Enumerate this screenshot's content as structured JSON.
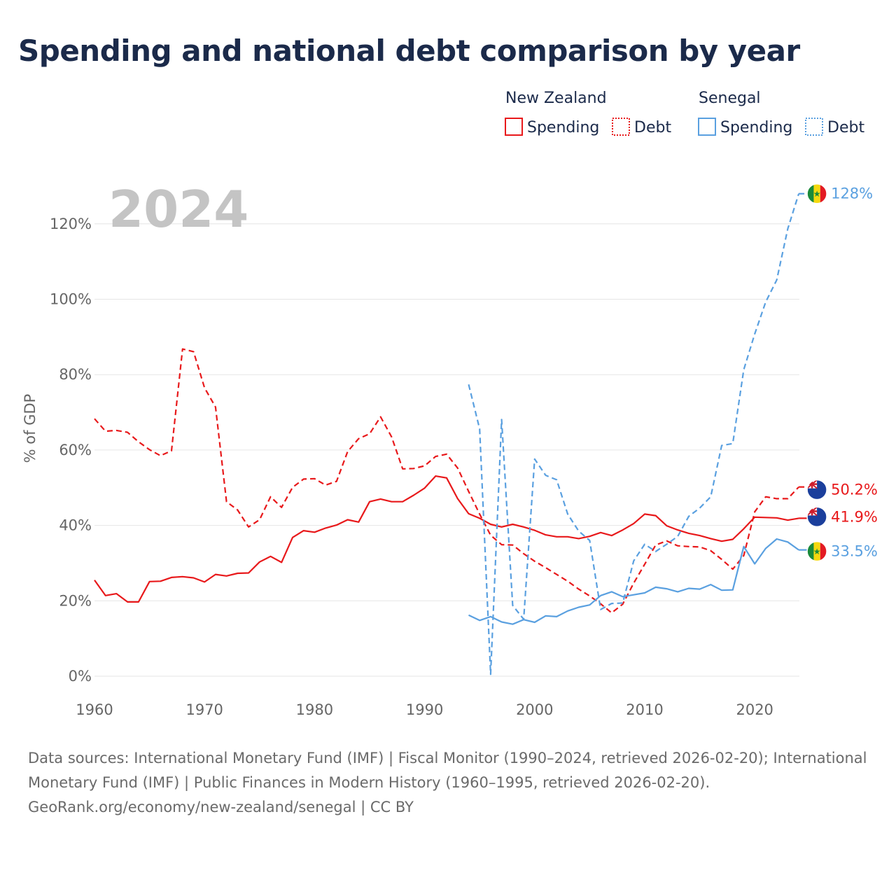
{
  "title": "Spending and national debt comparison by year",
  "year_label": "2024",
  "legend": {
    "groups": [
      {
        "country": "New Zealand",
        "color": "#e8191b",
        "items": [
          {
            "label": "Spending",
            "style": "solid"
          },
          {
            "label": "Debt",
            "style": "dashed"
          }
        ]
      },
      {
        "country": "Senegal",
        "color": "#5aa0e0",
        "items": [
          {
            "label": "Spending",
            "style": "solid"
          },
          {
            "label": "Debt",
            "style": "dashed"
          }
        ]
      }
    ]
  },
  "footer": {
    "sources": "Data sources: International Monetary Fund (IMF) | Fiscal Monitor (1990–2024, retrieved 2026-02-20); International Monetary Fund (IMF) | Public Finances in Modern History (1960–1995, retrieved 2026-02-20).",
    "credit": "GeoRank.org/economy/new-zealand/senegal | CC BY"
  },
  "chart_data": {
    "type": "line",
    "title": "Spending and national debt comparison by year",
    "xlabel": "",
    "ylabel": "% of GDP",
    "xlim": [
      1960,
      2024
    ],
    "ylim": [
      0,
      130
    ],
    "x_ticks": [
      1960,
      1970,
      1980,
      1990,
      2000,
      2010,
      2020
    ],
    "y_ticks": [
      0,
      20,
      40,
      60,
      80,
      100,
      120
    ],
    "y_tick_labels": [
      "0%",
      "20%",
      "40%",
      "60%",
      "80%",
      "100%",
      "120%"
    ],
    "grid": true,
    "series": [
      {
        "name": "New Zealand Spending",
        "country": "New Zealand",
        "measure": "Spending",
        "color": "#e8191b",
        "dash": "solid",
        "end_label": "41.9%",
        "points": [
          [
            1960,
            25.5
          ],
          [
            1961,
            21.4
          ],
          [
            1962,
            21.9
          ],
          [
            1963,
            19.7
          ],
          [
            1964,
            19.7
          ],
          [
            1965,
            25.1
          ],
          [
            1966,
            25.2
          ],
          [
            1967,
            26.2
          ],
          [
            1968,
            26.4
          ],
          [
            1969,
            26.1
          ],
          [
            1970,
            25.0
          ],
          [
            1971,
            27.0
          ],
          [
            1972,
            26.6
          ],
          [
            1973,
            27.3
          ],
          [
            1974,
            27.4
          ],
          [
            1975,
            30.3
          ],
          [
            1976,
            31.8
          ],
          [
            1977,
            30.2
          ],
          [
            1978,
            36.8
          ],
          [
            1979,
            38.6
          ],
          [
            1980,
            38.2
          ],
          [
            1981,
            39.3
          ],
          [
            1982,
            40.1
          ],
          [
            1983,
            41.5
          ],
          [
            1984,
            40.9
          ],
          [
            1985,
            46.3
          ],
          [
            1986,
            47.0
          ],
          [
            1987,
            46.3
          ],
          [
            1988,
            46.3
          ],
          [
            1989,
            48.0
          ],
          [
            1990,
            49.9
          ],
          [
            1991,
            53.1
          ],
          [
            1992,
            52.6
          ],
          [
            1993,
            47.1
          ],
          [
            1994,
            43.1
          ],
          [
            1995,
            41.9
          ],
          [
            1996,
            40.3
          ],
          [
            1997,
            39.6
          ],
          [
            1998,
            40.3
          ],
          [
            1999,
            39.6
          ],
          [
            2000,
            38.7
          ],
          [
            2001,
            37.5
          ],
          [
            2002,
            37.0
          ],
          [
            2003,
            37.0
          ],
          [
            2004,
            36.5
          ],
          [
            2005,
            37.1
          ],
          [
            2006,
            38.1
          ],
          [
            2007,
            37.3
          ],
          [
            2008,
            38.8
          ],
          [
            2009,
            40.5
          ],
          [
            2010,
            43.0
          ],
          [
            2011,
            42.6
          ],
          [
            2012,
            39.9
          ],
          [
            2013,
            38.8
          ],
          [
            2014,
            37.9
          ],
          [
            2015,
            37.3
          ],
          [
            2016,
            36.5
          ],
          [
            2017,
            35.8
          ],
          [
            2018,
            36.3
          ],
          [
            2019,
            39.1
          ],
          [
            2020,
            42.2
          ],
          [
            2021,
            42.1
          ],
          [
            2022,
            42.0
          ],
          [
            2023,
            41.4
          ],
          [
            2024,
            41.9
          ]
        ]
      },
      {
        "name": "New Zealand Debt",
        "country": "New Zealand",
        "measure": "Debt",
        "color": "#e8191b",
        "dash": "dashed",
        "end_label": "50.2%",
        "points": [
          [
            1960,
            68.3
          ],
          [
            1961,
            65.0
          ],
          [
            1962,
            65.2
          ],
          [
            1963,
            64.7
          ],
          [
            1964,
            62.2
          ],
          [
            1965,
            60.1
          ],
          [
            1966,
            58.5
          ],
          [
            1967,
            59.8
          ],
          [
            1968,
            86.8
          ],
          [
            1969,
            86.1
          ],
          [
            1970,
            76.5
          ],
          [
            1971,
            71.4
          ],
          [
            1972,
            46.3
          ],
          [
            1973,
            44.1
          ],
          [
            1974,
            39.6
          ],
          [
            1975,
            41.5
          ],
          [
            1976,
            47.6
          ],
          [
            1977,
            44.8
          ],
          [
            1978,
            50.1
          ],
          [
            1979,
            52.3
          ],
          [
            1980,
            52.4
          ],
          [
            1981,
            50.7
          ],
          [
            1982,
            51.7
          ],
          [
            1983,
            59.6
          ],
          [
            1984,
            63.0
          ],
          [
            1985,
            64.3
          ],
          [
            1986,
            68.8
          ],
          [
            1987,
            63.5
          ],
          [
            1988,
            55.0
          ],
          [
            1989,
            55.1
          ],
          [
            1990,
            55.8
          ],
          [
            1991,
            58.3
          ],
          [
            1992,
            58.9
          ],
          [
            1993,
            55.2
          ],
          [
            1994,
            49.0
          ],
          [
            1995,
            43.0
          ],
          [
            1996,
            37.4
          ],
          [
            1997,
            34.9
          ],
          [
            1998,
            34.8
          ],
          [
            1999,
            32.5
          ],
          [
            2000,
            30.5
          ],
          [
            2001,
            28.8
          ],
          [
            2002,
            27.0
          ],
          [
            2003,
            25.2
          ],
          [
            2004,
            23.1
          ],
          [
            2005,
            21.3
          ],
          [
            2006,
            19.2
          ],
          [
            2007,
            16.8
          ],
          [
            2008,
            19.1
          ],
          [
            2009,
            24.7
          ],
          [
            2010,
            29.7
          ],
          [
            2011,
            34.8
          ],
          [
            2012,
            35.9
          ],
          [
            2013,
            34.6
          ],
          [
            2014,
            34.4
          ],
          [
            2015,
            34.3
          ],
          [
            2016,
            33.3
          ],
          [
            2017,
            31.0
          ],
          [
            2018,
            28.4
          ],
          [
            2019,
            32.0
          ],
          [
            2020,
            43.6
          ],
          [
            2021,
            47.6
          ],
          [
            2022,
            47.1
          ],
          [
            2023,
            47.1
          ],
          [
            2024,
            50.2
          ]
        ]
      },
      {
        "name": "Senegal Spending",
        "country": "Senegal",
        "measure": "Spending",
        "color": "#5aa0e0",
        "dash": "solid",
        "end_label": "33.5%",
        "points": [
          [
            1994,
            16.2
          ],
          [
            1995,
            14.8
          ],
          [
            1996,
            15.8
          ],
          [
            1997,
            14.4
          ],
          [
            1998,
            13.8
          ],
          [
            1999,
            15.0
          ],
          [
            2000,
            14.3
          ],
          [
            2001,
            16.0
          ],
          [
            2002,
            15.8
          ],
          [
            2003,
            17.3
          ],
          [
            2004,
            18.3
          ],
          [
            2005,
            18.9
          ],
          [
            2006,
            21.4
          ],
          [
            2007,
            22.4
          ],
          [
            2008,
            21.1
          ],
          [
            2009,
            21.6
          ],
          [
            2010,
            22.1
          ],
          [
            2011,
            23.6
          ],
          [
            2012,
            23.2
          ],
          [
            2013,
            22.4
          ],
          [
            2014,
            23.3
          ],
          [
            2015,
            23.1
          ],
          [
            2016,
            24.3
          ],
          [
            2017,
            22.8
          ],
          [
            2018,
            22.9
          ],
          [
            2019,
            34.4
          ],
          [
            2020,
            29.8
          ],
          [
            2021,
            33.9
          ],
          [
            2022,
            36.4
          ],
          [
            2023,
            35.6
          ],
          [
            2024,
            33.5
          ]
        ]
      },
      {
        "name": "Senegal Debt",
        "country": "Senegal",
        "measure": "Debt",
        "color": "#5aa0e0",
        "dash": "dashed",
        "end_label": "128%",
        "points": [
          [
            1994,
            77.4
          ],
          [
            1995,
            65.6
          ],
          [
            1996,
            0.5
          ],
          [
            1997,
            68.1
          ],
          [
            1998,
            18.8
          ],
          [
            1999,
            15.1
          ],
          [
            2000,
            57.6
          ],
          [
            2001,
            53.3
          ],
          [
            2002,
            52.1
          ],
          [
            2003,
            43.0
          ],
          [
            2004,
            38.5
          ],
          [
            2005,
            36.0
          ],
          [
            2006,
            17.7
          ],
          [
            2007,
            19.3
          ],
          [
            2008,
            19.4
          ],
          [
            2009,
            30.6
          ],
          [
            2010,
            35.0
          ],
          [
            2011,
            33.1
          ],
          [
            2012,
            35.0
          ],
          [
            2013,
            37.1
          ],
          [
            2014,
            42.4
          ],
          [
            2015,
            44.6
          ],
          [
            2016,
            47.6
          ],
          [
            2017,
            61.2
          ],
          [
            2018,
            61.7
          ],
          [
            2019,
            81.3
          ],
          [
            2020,
            90.8
          ],
          [
            2021,
            99.3
          ],
          [
            2022,
            105.1
          ],
          [
            2023,
            118.7
          ],
          [
            2024,
            128.0
          ]
        ]
      }
    ]
  }
}
